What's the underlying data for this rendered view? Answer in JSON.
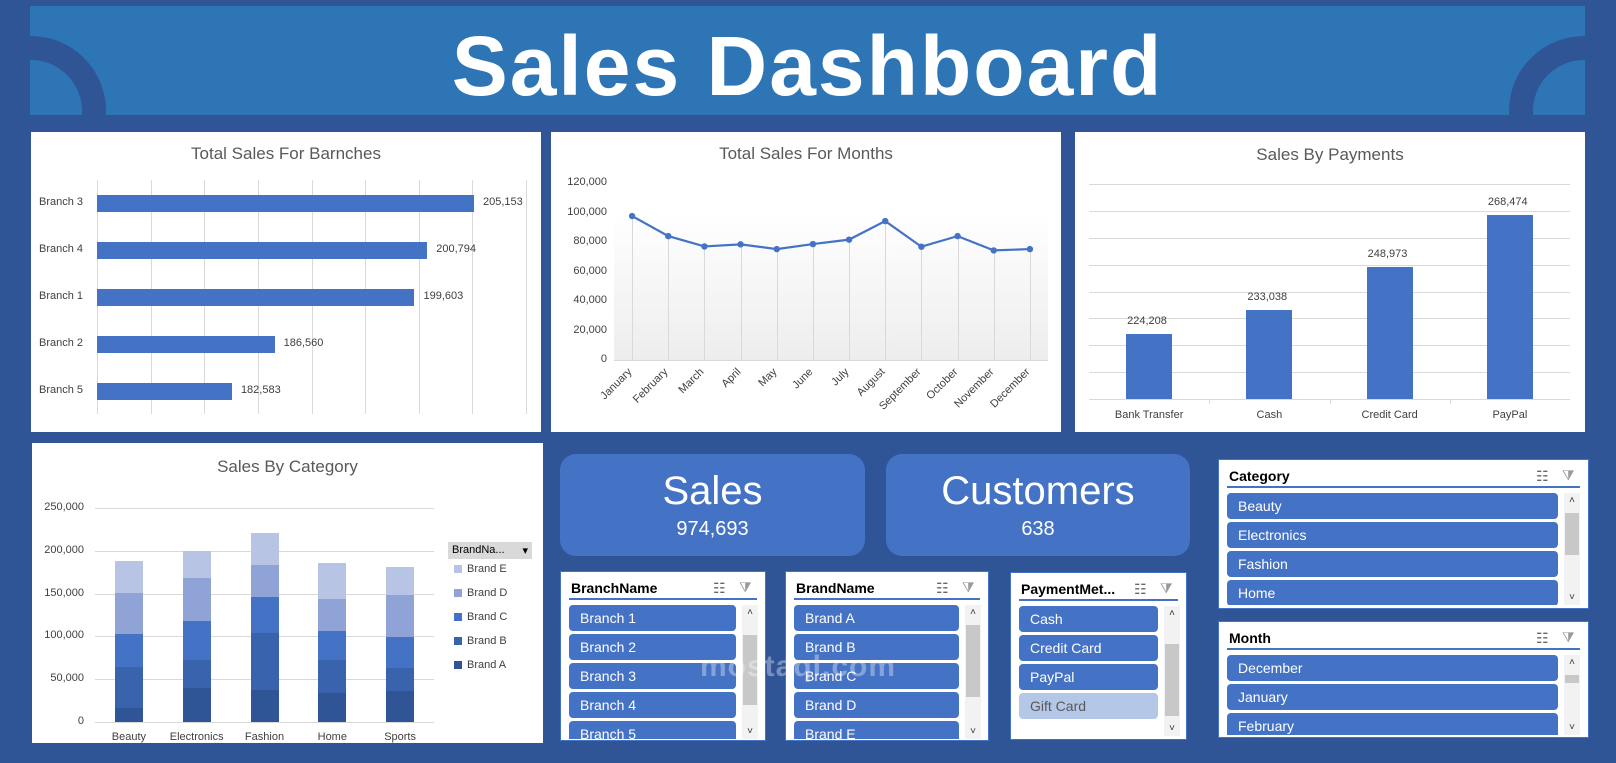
{
  "header": {
    "title": "Sales Dashboard"
  },
  "colors": {
    "background": "#2F5597",
    "banner": "#2E75B6",
    "accent": "#4472C4",
    "brand_a": "#2F5597",
    "brand_b": "#3A63AD",
    "brand_c": "#4472C4",
    "brand_d": "#8FA3D6",
    "brand_e": "#B8C4E3"
  },
  "kpis": {
    "sales": {
      "label": "Sales",
      "value": "974,693"
    },
    "customers": {
      "label": "Customers",
      "value": "638"
    }
  },
  "chart_data": [
    {
      "type": "bar",
      "orientation": "horizontal",
      "title": "Total Sales For Barnches",
      "categories": [
        "Branch 3",
        "Branch 4",
        "Branch 1",
        "Branch 2",
        "Branch 5"
      ],
      "values": [
        205153,
        200794,
        199603,
        186560,
        182583
      ],
      "labels": [
        "205,153",
        "200,794",
        "199,603",
        "186,560",
        "182,583"
      ],
      "grid": true,
      "xlabel": "",
      "ylabel": ""
    },
    {
      "type": "line",
      "title": "Total Sales For Months",
      "categories": [
        "January",
        "February",
        "March",
        "April",
        "May",
        "June",
        "July",
        "August",
        "September",
        "October",
        "November",
        "December"
      ],
      "values": [
        97600,
        84000,
        77000,
        78400,
        75200,
        78600,
        81600,
        94200,
        76800,
        84000,
        74300,
        75200
      ],
      "yticks": [
        "0",
        "20,000",
        "40,000",
        "60,000",
        "80,000",
        "100,000",
        "120,000"
      ],
      "ylim": [
        0,
        120000
      ],
      "grid": true
    },
    {
      "type": "bar",
      "title": "Sales By Payments",
      "categories": [
        "Bank Transfer",
        "Cash",
        "Credit Card",
        "PayPal"
      ],
      "values": [
        224208,
        233038,
        248973,
        268474
      ],
      "labels": [
        "224,208",
        "233,038",
        "248,973",
        "268,474"
      ],
      "grid": true
    },
    {
      "type": "bar",
      "stacked": true,
      "title": "Sales By Category",
      "categories": [
        "Beauty",
        "Electronics",
        "Fashion",
        "Home",
        "Sports"
      ],
      "series": [
        {
          "name": "Brand A",
          "values": [
            16300,
            39600,
            37300,
            33800,
            36100
          ]
        },
        {
          "name": "Brand B",
          "values": [
            47800,
            32600,
            66400,
            38400,
            26800
          ]
        },
        {
          "name": "Brand C",
          "values": [
            38400,
            45400,
            41900,
            33800,
            36100
          ]
        },
        {
          "name": "Brand D",
          "values": [
            47800,
            50100,
            37300,
            37300,
            48900
          ]
        },
        {
          "name": "Brand E",
          "values": [
            37300,
            32200,
            38400,
            41900,
            32600
          ]
        }
      ],
      "yticks": [
        "0",
        "50,000",
        "100,000",
        "150,000",
        "200,000",
        "250,000"
      ],
      "ylim": [
        0,
        250000
      ],
      "legend_title": "BrandNa...",
      "legend_position": "right",
      "legend": [
        "Brand E",
        "Brand D",
        "Brand C",
        "Brand B",
        "Brand A"
      ]
    }
  ],
  "slicers": {
    "branch": {
      "title": "BranchName",
      "items": [
        "Branch 1",
        "Branch 2",
        "Branch 3",
        "Branch 4",
        "Branch 5"
      ]
    },
    "brand": {
      "title": "BrandName",
      "items": [
        "Brand A",
        "Brand B",
        "Brand C",
        "Brand D",
        "Brand E"
      ]
    },
    "payment": {
      "title": "PaymentMet...",
      "items": [
        "Cash",
        "Credit Card",
        "PayPal",
        "Gift Card"
      ]
    },
    "category": {
      "title": "Category",
      "items": [
        "Beauty",
        "Electronics",
        "Fashion",
        "Home"
      ]
    },
    "month": {
      "title": "Month",
      "items": [
        "December",
        "January",
        "February"
      ]
    }
  },
  "icons": {
    "multiselect": "☷",
    "clear_filter": "⧩",
    "scroll_up": "˄",
    "scroll_down": "˅",
    "dropdown": "▾"
  },
  "watermark": "mostaql.com"
}
